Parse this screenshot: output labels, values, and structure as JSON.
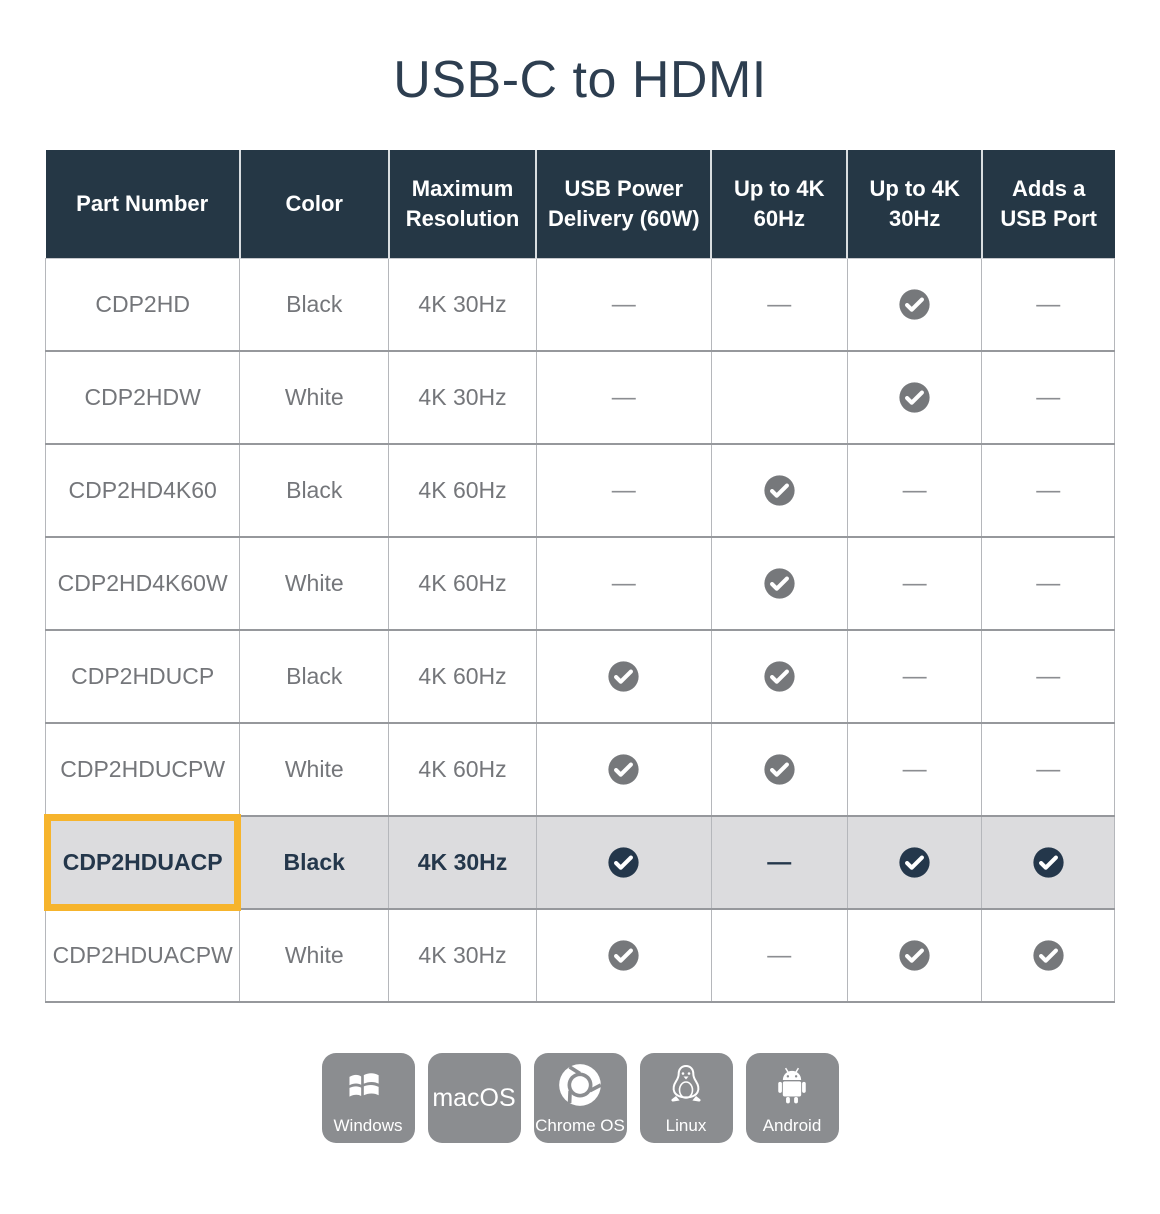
{
  "chart_data": {
    "type": "table",
    "title": "USB-C to HDMI",
    "columns": [
      "Part Number",
      "Color",
      "Maximum Resolution",
      "USB Power Delivery (60W)",
      "Up to 4K 60Hz",
      "Up to 4K 30Hz",
      "Adds a USB Port"
    ],
    "rows": [
      [
        "CDP2HD",
        "Black",
        "4K 30Hz",
        "dash",
        "dash",
        "check",
        "dash"
      ],
      [
        "CDP2HDW",
        "White",
        "4K 30Hz",
        "dash",
        "",
        "check",
        "dash"
      ],
      [
        "CDP2HD4K60",
        "Black",
        "4K 60Hz",
        "dash",
        "check",
        "dash",
        "dash"
      ],
      [
        "CDP2HD4K60W",
        "White",
        "4K 60Hz",
        "dash",
        "check",
        "dash",
        "dash"
      ],
      [
        "CDP2HDUCP",
        "Black",
        "4K 60Hz",
        "check",
        "check",
        "dash",
        "dash"
      ],
      [
        "CDP2HDUCPW",
        "White",
        "4K 60Hz",
        "check",
        "check",
        "dash",
        "dash"
      ],
      [
        "CDP2HDUACP",
        "Black",
        "4K 30Hz",
        "check",
        "dash",
        "check",
        "check"
      ],
      [
        "CDP2HDUACPW",
        "White",
        "4K 30Hz",
        "check",
        "dash",
        "check",
        "check"
      ]
    ],
    "highlighted_row_index": 6,
    "highlighted_part_number": "CDP2HDUACP",
    "legend_position": "none",
    "grid": true
  },
  "glyphs": {
    "dash": "—"
  },
  "icons": {
    "check": "check-circle-icon",
    "dash": "dash-icon",
    "windows": "windows-logo-icon",
    "chrome-os": "chrome-logo-icon",
    "linux": "tux-penguin-icon",
    "android": "android-robot-icon"
  },
  "colors": {
    "header_bg": "#253745",
    "header_text": "#ffffff",
    "body_text": "#74767a",
    "check_gray": "#76787b",
    "highlight_row_bg": "#dcdcde",
    "highlight_navy": "#24374b",
    "highlight_frame_yellow": "#f6b42c",
    "os_tile_gray": "#8b8d90",
    "title_navy": "#2d3e50"
  },
  "os_badges": [
    {
      "name": "windows",
      "label": "Windows"
    },
    {
      "name": "macos",
      "label": "macOS"
    },
    {
      "name": "chrome-os",
      "label": "Chrome OS"
    },
    {
      "name": "linux",
      "label": "Linux"
    },
    {
      "name": "android",
      "label": "Android"
    }
  ]
}
